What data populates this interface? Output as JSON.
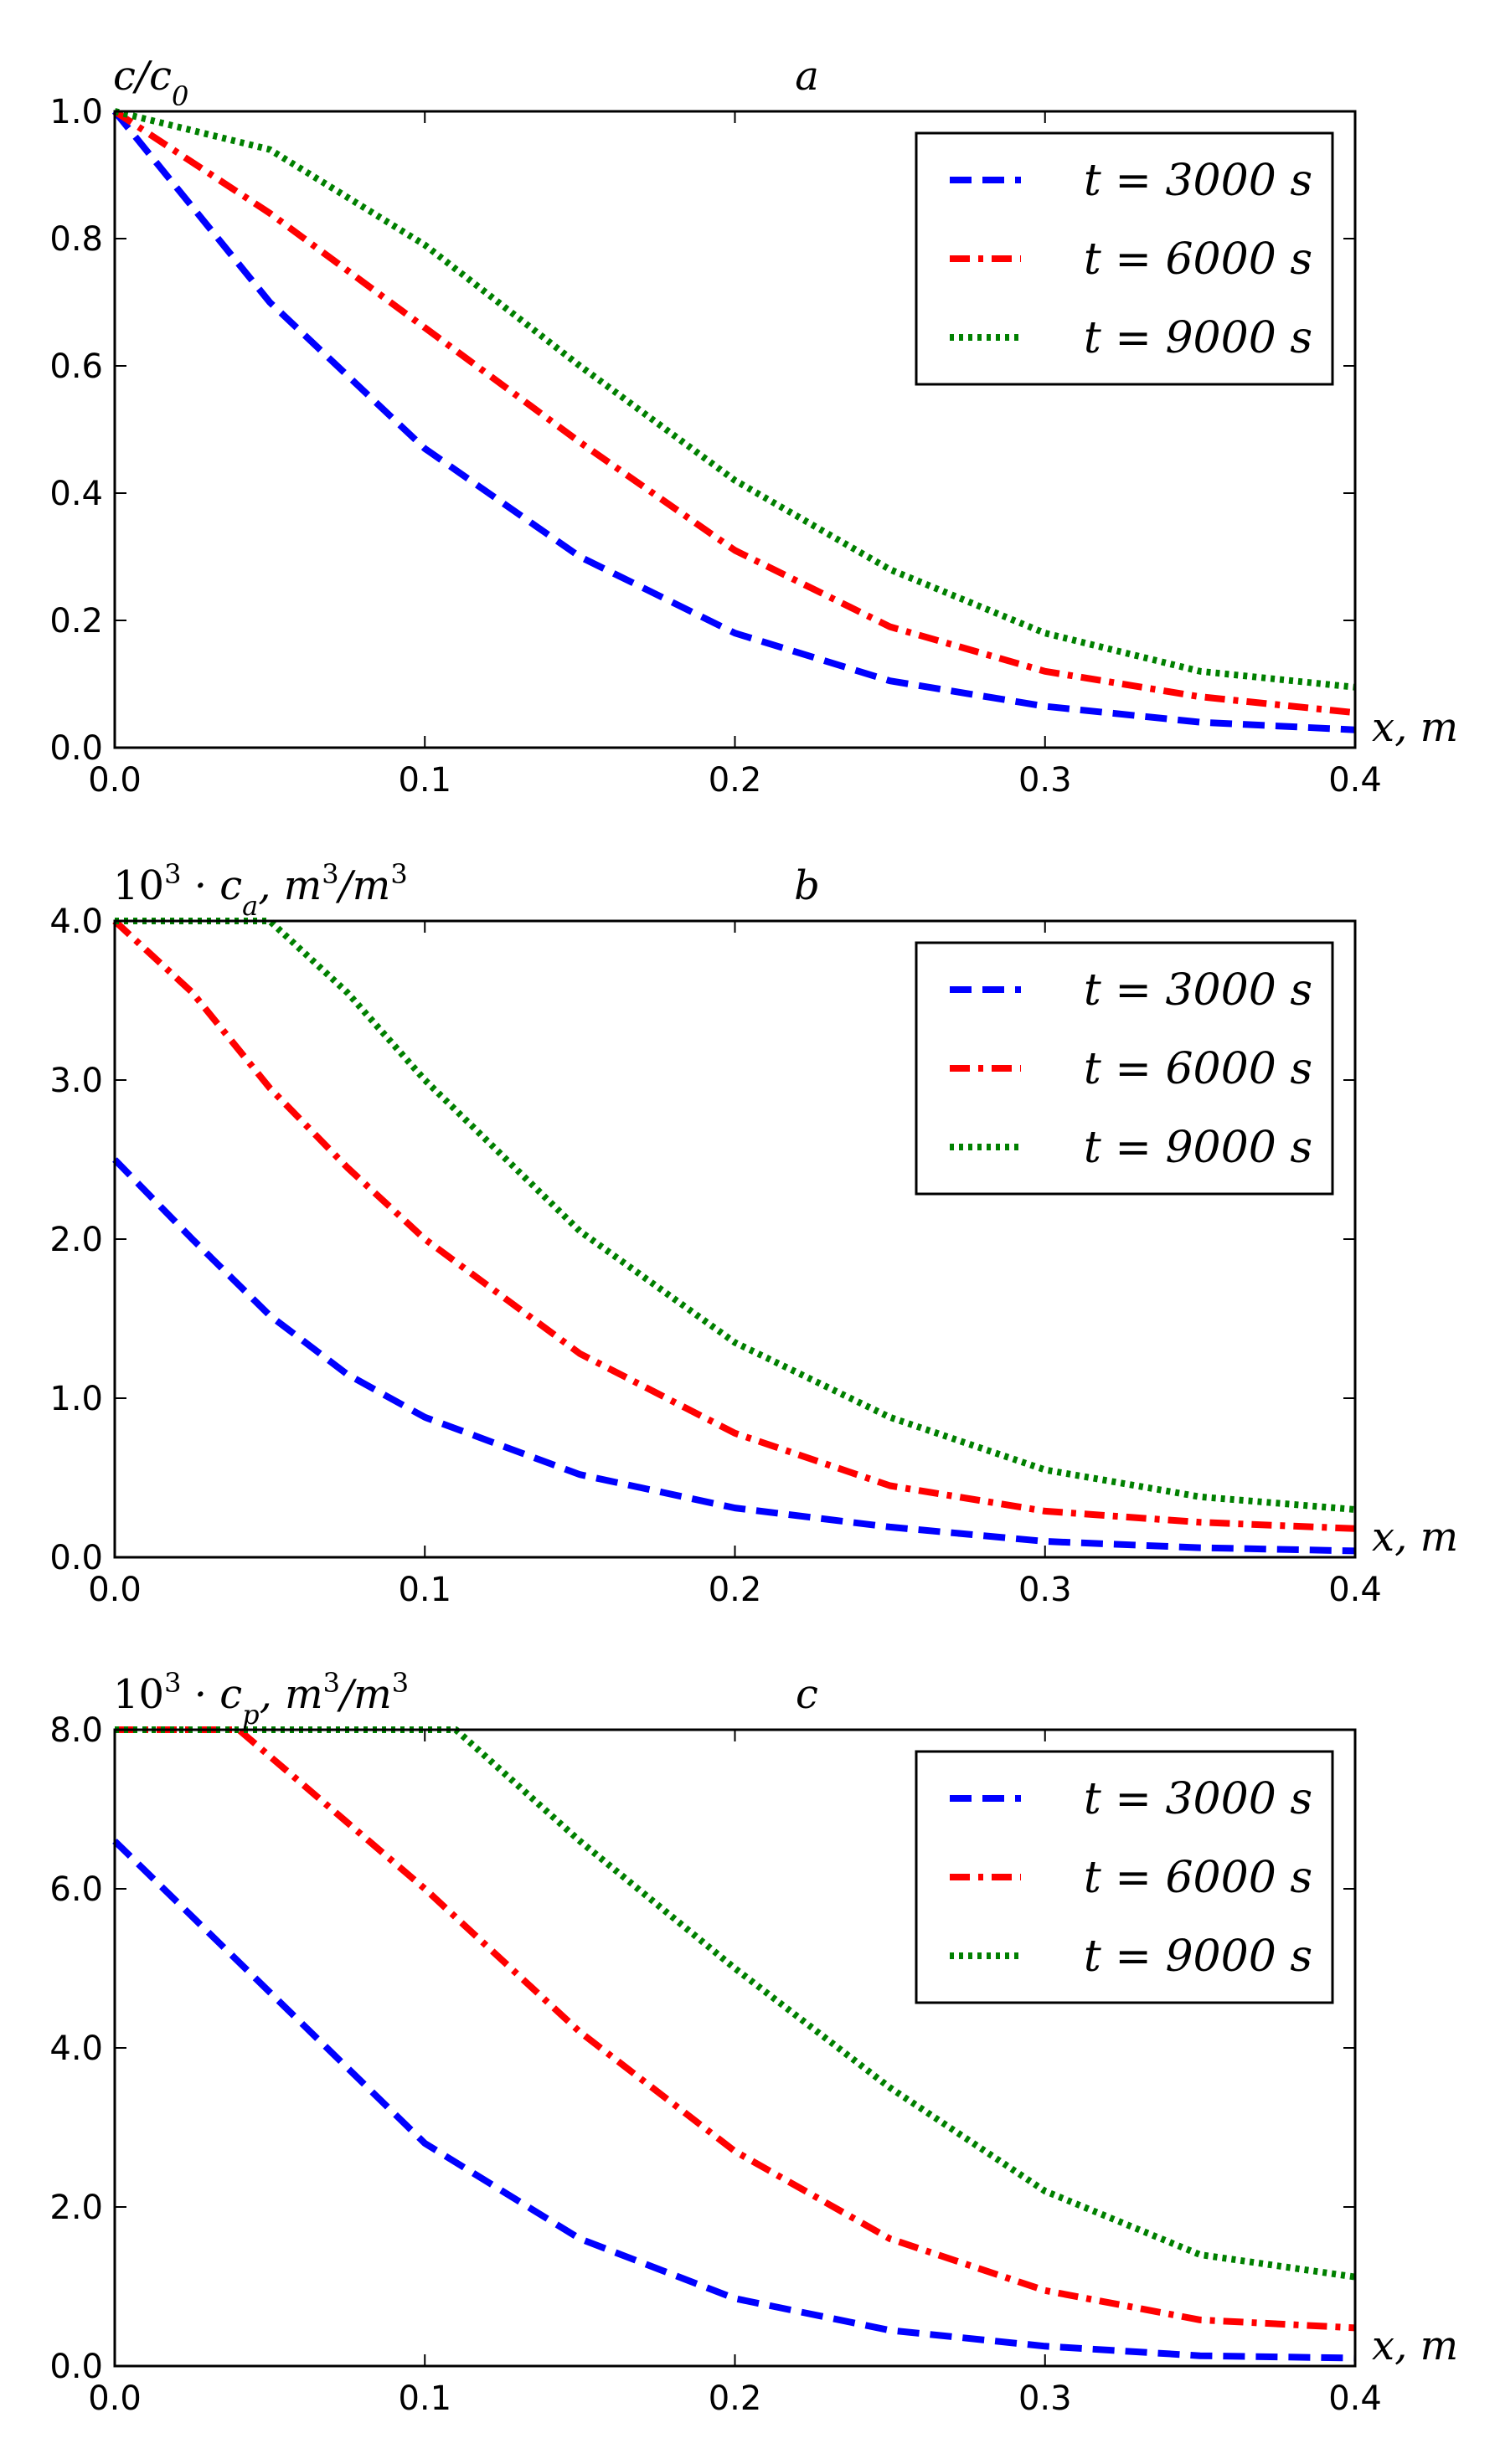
{
  "chart_data": [
    {
      "type": "line",
      "panel_label": "a",
      "ylabel": "c/c₀",
      "xlabel": "x, m",
      "xlim": [
        0.0,
        0.4
      ],
      "ylim": [
        0.0,
        1.0
      ],
      "x_ticks": [
        "0.0",
        "0.1",
        "0.2",
        "0.3",
        "0.4"
      ],
      "y_ticks": [
        "0.0",
        "0.2",
        "0.4",
        "0.6",
        "0.8",
        "1.0"
      ],
      "legend_position": "top-right",
      "x": [
        0.0,
        0.05,
        0.1,
        0.15,
        0.2,
        0.25,
        0.3,
        0.35,
        0.4
      ],
      "series": [
        {
          "name": "t = 3000 s",
          "color": "#0000ff",
          "dash": "dashed",
          "values": [
            1.0,
            0.7,
            0.47,
            0.3,
            0.18,
            0.105,
            0.065,
            0.04,
            0.028
          ]
        },
        {
          "name": "t = 6000 s",
          "color": "#ff0000",
          "dash": "dashdot",
          "values": [
            1.0,
            0.84,
            0.66,
            0.48,
            0.31,
            0.19,
            0.12,
            0.08,
            0.055
          ]
        },
        {
          "name": "t = 9000 s",
          "color": "#008000",
          "dash": "dotted",
          "values": [
            1.0,
            0.94,
            0.79,
            0.6,
            0.42,
            0.28,
            0.18,
            0.12,
            0.095
          ]
        }
      ]
    },
    {
      "type": "line",
      "panel_label": "b",
      "ylabel": "10³ · cₐ, m³/m³",
      "xlabel": "x, m",
      "xlim": [
        0.0,
        0.4
      ],
      "ylim": [
        0.0,
        4.0
      ],
      "x_ticks": [
        "0.0",
        "0.1",
        "0.2",
        "0.3",
        "0.4"
      ],
      "y_ticks": [
        "0.0",
        "1.0",
        "2.0",
        "3.0",
        "4.0"
      ],
      "legend_position": "top-right",
      "x": [
        0.0,
        0.025,
        0.05,
        0.075,
        0.1,
        0.15,
        0.2,
        0.25,
        0.3,
        0.35,
        0.4
      ],
      "series": [
        {
          "name": "t = 3000 s",
          "color": "#0000ff",
          "dash": "dashed",
          "x": [
            0.0,
            0.025,
            0.05,
            0.075,
            0.1,
            0.15,
            0.2,
            0.25,
            0.3,
            0.35,
            0.4
          ],
          "values": [
            2.5,
            2.0,
            1.52,
            1.15,
            0.88,
            0.52,
            0.31,
            0.19,
            0.1,
            0.06,
            0.04
          ]
        },
        {
          "name": "t = 6000 s",
          "color": "#ff0000",
          "dash": "dashdot",
          "x": [
            0.0,
            0.025,
            0.05,
            0.075,
            0.1,
            0.15,
            0.2,
            0.25,
            0.3,
            0.35,
            0.4
          ],
          "values": [
            4.0,
            3.55,
            2.95,
            2.45,
            2.0,
            1.28,
            0.78,
            0.45,
            0.29,
            0.22,
            0.18
          ]
        },
        {
          "name": "t = 9000 s",
          "color": "#008000",
          "dash": "dotted",
          "x": [
            0.0,
            0.025,
            0.05,
            0.075,
            0.1,
            0.15,
            0.2,
            0.25,
            0.3,
            0.35,
            0.4
          ],
          "values": [
            4.0,
            4.0,
            4.0,
            3.55,
            3.0,
            2.05,
            1.35,
            0.88,
            0.55,
            0.38,
            0.3
          ]
        }
      ]
    },
    {
      "type": "line",
      "panel_label": "c",
      "ylabel": "10³ · cₚ, m³/m³",
      "xlabel": "x, m",
      "xlim": [
        0.0,
        0.4
      ],
      "ylim": [
        0.0,
        8.0
      ],
      "x_ticks": [
        "0.0",
        "0.1",
        "0.2",
        "0.3",
        "0.4"
      ],
      "y_ticks": [
        "0.0",
        "2.0",
        "4.0",
        "6.0",
        "8.0"
      ],
      "legend_position": "top-right",
      "series": [
        {
          "name": "t = 3000 s",
          "color": "#0000ff",
          "dash": "dashed",
          "x": [
            0.0,
            0.05,
            0.1,
            0.15,
            0.2,
            0.25,
            0.3,
            0.35,
            0.4
          ],
          "values": [
            6.6,
            4.7,
            2.8,
            1.6,
            0.85,
            0.45,
            0.25,
            0.13,
            0.1
          ]
        },
        {
          "name": "t = 6000 s",
          "color": "#ff0000",
          "dash": "dashdot",
          "x": [
            0.0,
            0.04,
            0.1,
            0.15,
            0.2,
            0.25,
            0.3,
            0.35,
            0.4
          ],
          "values": [
            8.0,
            8.0,
            6.0,
            4.2,
            2.7,
            1.6,
            0.95,
            0.58,
            0.48
          ]
        },
        {
          "name": "t = 9000 s",
          "color": "#008000",
          "dash": "dotted",
          "x": [
            0.0,
            0.05,
            0.11,
            0.15,
            0.2,
            0.25,
            0.3,
            0.35,
            0.4
          ],
          "values": [
            8.0,
            8.0,
            8.0,
            6.6,
            5.0,
            3.5,
            2.2,
            1.4,
            1.12
          ]
        }
      ]
    }
  ]
}
